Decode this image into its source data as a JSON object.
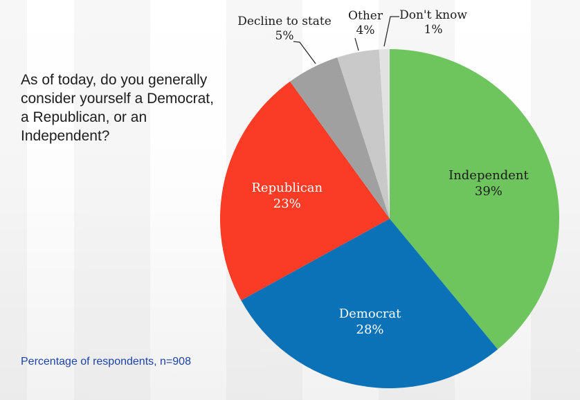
{
  "question": "As of today, do you generally consider yourself a Democrat, a Republican, or an Independent?",
  "footnote": {
    "text": "Percentage of respondents, n=908",
    "color": "#1c42a8"
  },
  "chart_data": {
    "type": "pie",
    "title": "",
    "start_angle_deg": 0,
    "direction": "clockwise",
    "legend_position": "none",
    "units": "%",
    "slices": [
      {
        "label": "Independent",
        "value": 39,
        "color": "#6ec55e",
        "label_color": "#1b1b1b",
        "placement": "inside"
      },
      {
        "label": "Democrat",
        "value": 28,
        "color": "#0b72b8",
        "label_color": "#ffffff",
        "placement": "inside"
      },
      {
        "label": "Republican",
        "value": 23,
        "color": "#fa3b26",
        "label_color": "#ffffff",
        "placement": "inside"
      },
      {
        "label": "Decline to state",
        "value": 5,
        "color": "#a0a0a0",
        "label_color": "#1b1b1b",
        "placement": "callout"
      },
      {
        "label": "Other",
        "value": 4,
        "color": "#c9c9c9",
        "label_color": "#1b1b1b",
        "placement": "callout"
      },
      {
        "label": "Don't know",
        "value": 1,
        "color": "#e2e2e2",
        "label_color": "#1b1b1b",
        "placement": "callout"
      }
    ]
  }
}
